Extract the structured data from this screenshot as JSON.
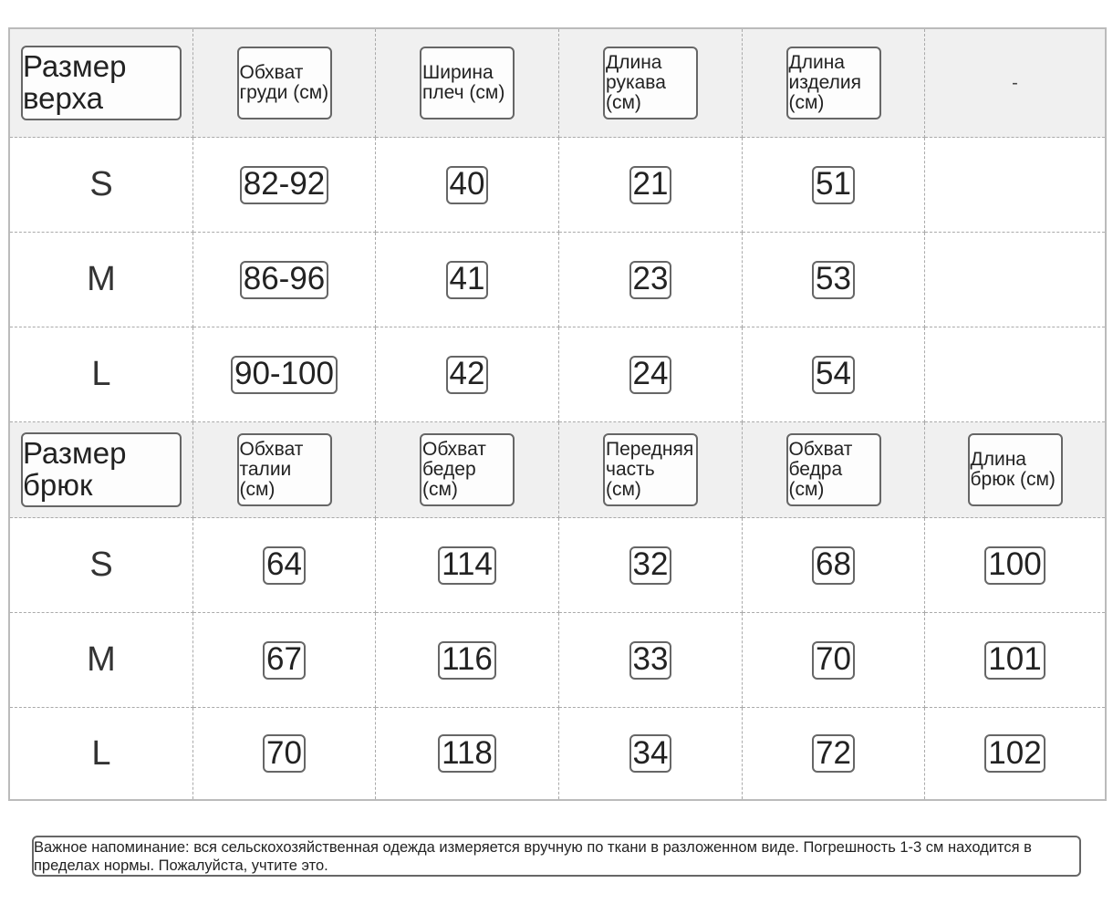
{
  "top_table": {
    "headers": [
      "Размер верха",
      "Обхват груди (см)",
      "Ширина плеч (см)",
      "Длина рукава (см)",
      "Длина изделия (см)",
      "-"
    ],
    "rows": [
      [
        "S",
        "82-92",
        "40",
        "21",
        "51",
        ""
      ],
      [
        "M",
        "86-96",
        "41",
        "23",
        "53",
        ""
      ],
      [
        "L",
        "90-100",
        "42",
        "24",
        "54",
        ""
      ]
    ]
  },
  "bottom_table": {
    "headers": [
      "Размер брюк",
      "Обхват талии (см)",
      "Обхват бедер (см)",
      "Передняя часть (см)",
      "Обхват бедра (см)",
      "Длина брюк (см)"
    ],
    "rows": [
      [
        "S",
        "64",
        "114",
        "32",
        "68",
        "100"
      ],
      [
        "M",
        "67",
        "116",
        "33",
        "70",
        "101"
      ],
      [
        "L",
        "70",
        "118",
        "34",
        "72",
        "102"
      ]
    ]
  },
  "note": "Важное напоминание: вся сельскохозяйственная одежда измеряется вручную по ткани в разложенном виде. Погрешность 1-3 см находится в пределах нормы. Пожалуйста, учтите это.",
  "colors": {
    "header_bg": "#f0f0f0",
    "border": "#666666",
    "grid": "#aaaaaa"
  }
}
